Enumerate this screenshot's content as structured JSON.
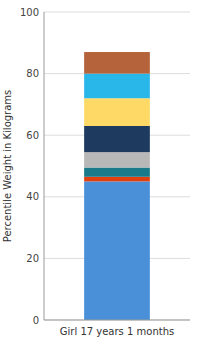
{
  "chart_data": {
    "type": "bar",
    "stacked": true,
    "categories": [
      "Girl 17 years 1 months"
    ],
    "series": [
      {
        "color": "#4A90D9",
        "values": [
          45
        ]
      },
      {
        "color": "#E04010",
        "values": [
          1.5
        ]
      },
      {
        "color": "#1A7A8A",
        "values": [
          3
        ]
      },
      {
        "color": "#B8B8B8",
        "values": [
          5
        ]
      },
      {
        "color": "#1E3A5F",
        "values": [
          8.5
        ]
      },
      {
        "color": "#FFD966",
        "values": [
          9
        ]
      },
      {
        "color": "#29B6E8",
        "values": [
          8
        ]
      },
      {
        "color": "#B5633A",
        "values": [
          7
        ]
      }
    ],
    "ylabel": "Percentile Weight in Kilograms",
    "ylim": [
      0,
      100
    ],
    "yticks": [
      0,
      20,
      40,
      60,
      80,
      100
    ],
    "grid": true
  }
}
